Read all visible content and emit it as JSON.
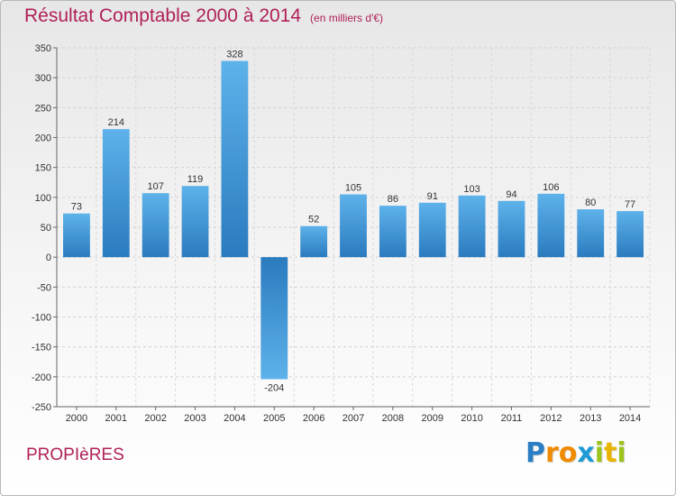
{
  "title": "Résultat Comptable 2000 à 2014",
  "unit_note": "(en milliers d'€)",
  "commune": "PROPIèRES",
  "logo": {
    "text": "Proxiti",
    "letters": [
      {
        "ch": "P",
        "color": "#2b7ec3"
      },
      {
        "ch": "r",
        "color": "#f08a00"
      },
      {
        "ch": "o",
        "color": "#f08a00"
      },
      {
        "ch": "x",
        "color": "#1e9ad6"
      },
      {
        "ch": "i",
        "color": "#9cc31e"
      },
      {
        "ch": "t",
        "color": "#e8b400"
      },
      {
        "ch": "i",
        "color": "#9cc31e"
      }
    ]
  },
  "colors": {
    "title": "#b0205a",
    "bar_light": "#5eb2ea",
    "bar_dark": "#2a7bbf"
  },
  "chart_data": {
    "type": "bar",
    "categories": [
      "2000",
      "2001",
      "2002",
      "2003",
      "2004",
      "2005",
      "2006",
      "2007",
      "2008",
      "2009",
      "2010",
      "2011",
      "2012",
      "2013",
      "2014"
    ],
    "values": [
      73,
      214,
      107,
      119,
      328,
      -204,
      52,
      105,
      86,
      91,
      103,
      94,
      106,
      80,
      77
    ],
    "ylim": [
      -250,
      350
    ],
    "yticks": [
      350,
      300,
      250,
      200,
      150,
      100,
      50,
      0,
      -50,
      -100,
      -150,
      -200,
      -250
    ],
    "ytick_labels": [
      "350",
      "300",
      "250",
      "200",
      "150",
      "100",
      "50",
      "0",
      "-50",
      "-100",
      "-150",
      "-200",
      "-250"
    ],
    "grid": true
  }
}
